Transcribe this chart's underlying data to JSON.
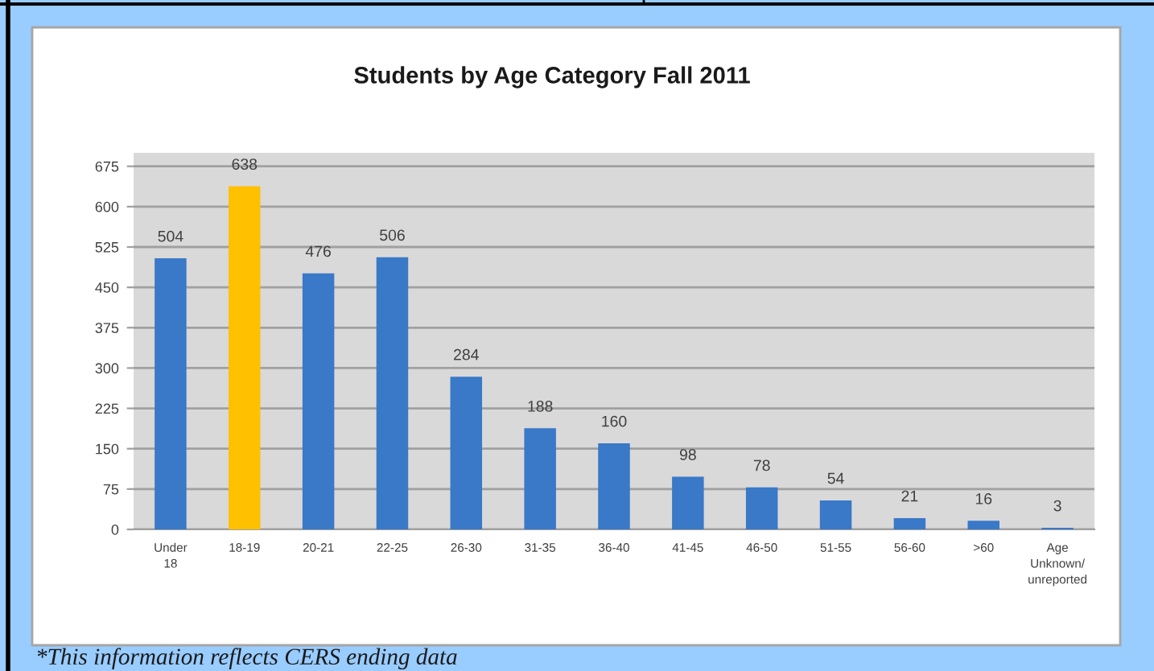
{
  "chart_data": {
    "type": "bar",
    "title": "Students by Age Category Fall 2011",
    "categories": [
      "Under\n18",
      "18-19",
      "20-21",
      "22-25",
      "26-30",
      "31-35",
      "36-40",
      "41-45",
      "46-50",
      "51-55",
      "56-60",
      ">60",
      "Age\nUnknown/\nunreported"
    ],
    "values": [
      504,
      638,
      476,
      506,
      284,
      188,
      160,
      98,
      78,
      54,
      21,
      16,
      3
    ],
    "colors": [
      "#3a78c8",
      "#ffc000",
      "#3a78c8",
      "#3a78c8",
      "#3a78c8",
      "#3a78c8",
      "#3a78c8",
      "#3a78c8",
      "#3a78c8",
      "#3a78c8",
      "#3a78c8",
      "#3a78c8",
      "#3a78c8"
    ],
    "ylim": [
      0,
      700
    ],
    "yticks": [
      0,
      75,
      150,
      225,
      300,
      375,
      450,
      525,
      600,
      675
    ],
    "grid": "y",
    "data_labels": true,
    "annotations": [
      "*This information reflects CERS ending data"
    ]
  }
}
